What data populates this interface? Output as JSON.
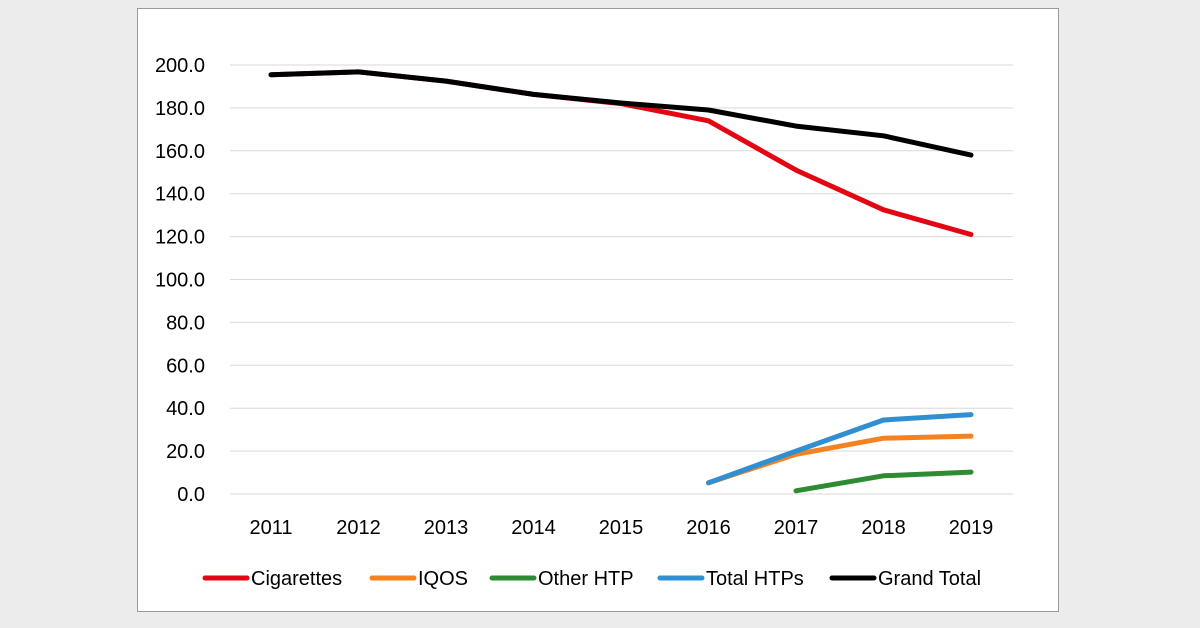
{
  "chart_data": {
    "type": "line",
    "title": "",
    "xlabel": "",
    "ylabel": "",
    "categories": [
      "2011",
      "2012",
      "2013",
      "2014",
      "2015",
      "2016",
      "2017",
      "2018",
      "2019"
    ],
    "ylim": [
      0,
      200
    ],
    "ystep": 20,
    "ytick_labels": [
      "0.0",
      "20.0",
      "40.0",
      "60.0",
      "80.0",
      "100.0",
      "120.0",
      "140.0",
      "160.0",
      "180.0",
      "200.0"
    ],
    "grid": "horizontal",
    "legend_position": "bottom",
    "series": [
      {
        "name": "Cigarettes",
        "color": "#e30613",
        "values": [
          195.5,
          196.8,
          192.5,
          186.3,
          182.0,
          174.0,
          151.0,
          132.5,
          121.0
        ]
      },
      {
        "name": "IQOS",
        "color": "#f58220",
        "values": [
          null,
          null,
          null,
          null,
          null,
          5.2,
          18.5,
          26.0,
          27.0
        ]
      },
      {
        "name": "Other HTP",
        "color": "#2e8b32",
        "values": [
          null,
          null,
          null,
          null,
          null,
          null,
          1.5,
          8.5,
          10.2
        ]
      },
      {
        "name": "Total HTPs",
        "color": "#2f8fd1",
        "values": [
          null,
          null,
          null,
          null,
          null,
          5.2,
          20.0,
          34.5,
          37.0
        ]
      },
      {
        "name": "Grand Total",
        "color": "#000000",
        "values": [
          195.5,
          196.8,
          192.5,
          186.3,
          182.3,
          179.0,
          171.5,
          167.0,
          158.0
        ]
      }
    ]
  }
}
